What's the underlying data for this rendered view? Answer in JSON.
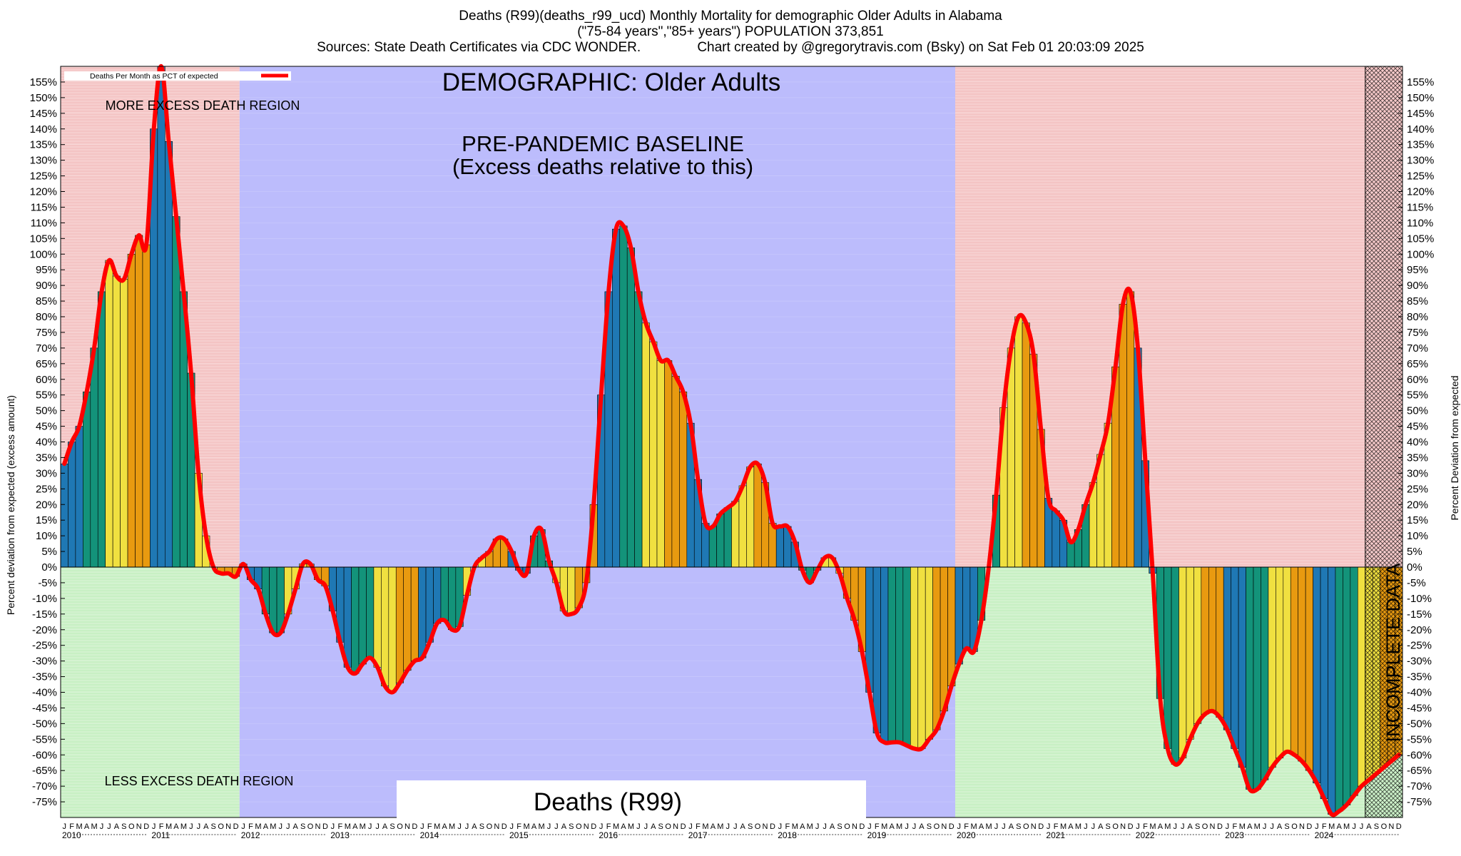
{
  "title_lines": [
    "Deaths (R99)(deaths_r99_ucd) Monthly Mortality for demographic Older Adults in Alabama",
    "(\"75-84 years\",\"85+ years\") POPULATION 373,851",
    "Sources: State Death Certificates via CDC WONDER.               Chart created by @gregorytravis.com (Bsky) on Sat Feb 01 20:03:09 2025"
  ],
  "legend_label": "Deaths Per Month as PCT of expected",
  "demographic_label": "DEMOGRAPHIC: Older Adults",
  "baseline_label_1": "PRE-PANDEMIC BASELINE",
  "baseline_label_2": "(Excess deaths relative to this)",
  "more_region_label": "MORE EXCESS DEATH REGION",
  "less_region_label": "LESS EXCESS DEATH REGION",
  "cause_label": "Deaths (R99)",
  "incomplete_label": "INCOMPLETE DATA",
  "colors": {
    "more_region": "#f4c4c4",
    "less_region": "#c8f0c4",
    "baseline": "#bcbcfc",
    "line": "#ff0000",
    "bar_winter": "#1f78b4",
    "bar_spring": "#13937a",
    "bar_summer": "#f0e040",
    "bar_fall": "#e89a10"
  },
  "chart_data": {
    "type": "bar",
    "title": "Deaths (R99)(deaths_r99_ucd) Monthly Mortality for demographic Older Adults in Alabama",
    "ylabel_left": "Percent deviation from expected (excess amount)",
    "ylabel_right": "Percent Deviation from expected",
    "ylim": [
      -80,
      160
    ],
    "ytick_step": 5,
    "month_letters": [
      "J",
      "F",
      "M",
      "A",
      "M",
      "J",
      "J",
      "A",
      "S",
      "O",
      "N",
      "D"
    ],
    "years": [
      "2010",
      "2011",
      "2012",
      "2013",
      "2014",
      "2015",
      "2016",
      "2017",
      "2018",
      "2019",
      "2020",
      "2021",
      "2022",
      "2023",
      "2024"
    ],
    "series_name": "Deaths Per Month as PCT of expected",
    "values": [
      33,
      40,
      45,
      56,
      70,
      88,
      98,
      93,
      92,
      100,
      106,
      103,
      140,
      160,
      136,
      112,
      88,
      62,
      30,
      10,
      0,
      -2,
      -2,
      -3,
      1,
      -4,
      -7,
      -15,
      -21,
      -21,
      -15,
      -7,
      1,
      1,
      -4,
      -6,
      -14,
      -24,
      -32,
      -34,
      -31,
      -29,
      -32,
      -38,
      -40,
      -37,
      -33,
      -30,
      -29,
      -24,
      -18,
      -17,
      -20,
      -19,
      -9,
      0,
      3,
      5,
      9,
      9,
      5,
      -1,
      -2,
      10,
      12,
      2,
      -5,
      -14,
      -15,
      -13,
      -5,
      20,
      55,
      88,
      108,
      109,
      102,
      88,
      78,
      72,
      66,
      66,
      61,
      56,
      46,
      28,
      14,
      13,
      17,
      19,
      21,
      26,
      32,
      33,
      27,
      14,
      13,
      13,
      8,
      -1,
      -5,
      -1,
      3,
      3,
      -2,
      -10,
      -17,
      -27,
      -40,
      -53,
      -56,
      -56,
      -56,
      -57,
      -58,
      -58,
      -55,
      -52,
      -46,
      -38,
      -31,
      -26,
      -27,
      -17,
      0,
      23,
      51,
      70,
      80,
      78,
      68,
      44,
      22,
      18,
      15,
      8,
      12,
      20,
      27,
      36,
      46,
      64,
      84,
      88,
      70,
      34,
      -2,
      -42,
      -58,
      -63,
      -61,
      -55,
      -50,
      -47,
      -46,
      -48,
      -52,
      -58,
      -64,
      -71,
      -71,
      -68,
      -64,
      -61,
      -59,
      -60,
      -62,
      -65,
      -69,
      -74,
      -79,
      -78,
      -76,
      -73,
      -70,
      -68,
      -66,
      -64,
      -62,
      -60
    ],
    "shaded_regions": [
      {
        "name": "more-excess-2010-2011",
        "from_year": "2010",
        "to_year": "2011"
      },
      {
        "name": "baseline-2012-2019",
        "from_year": "2012",
        "to_year": "2019"
      },
      {
        "name": "more-excess-2020-2024",
        "from_year": "2020",
        "to_year": "2024"
      },
      {
        "name": "incomplete",
        "from_month": "2024-08",
        "to_month": "2024-12"
      }
    ],
    "legend_position": "top-left"
  }
}
